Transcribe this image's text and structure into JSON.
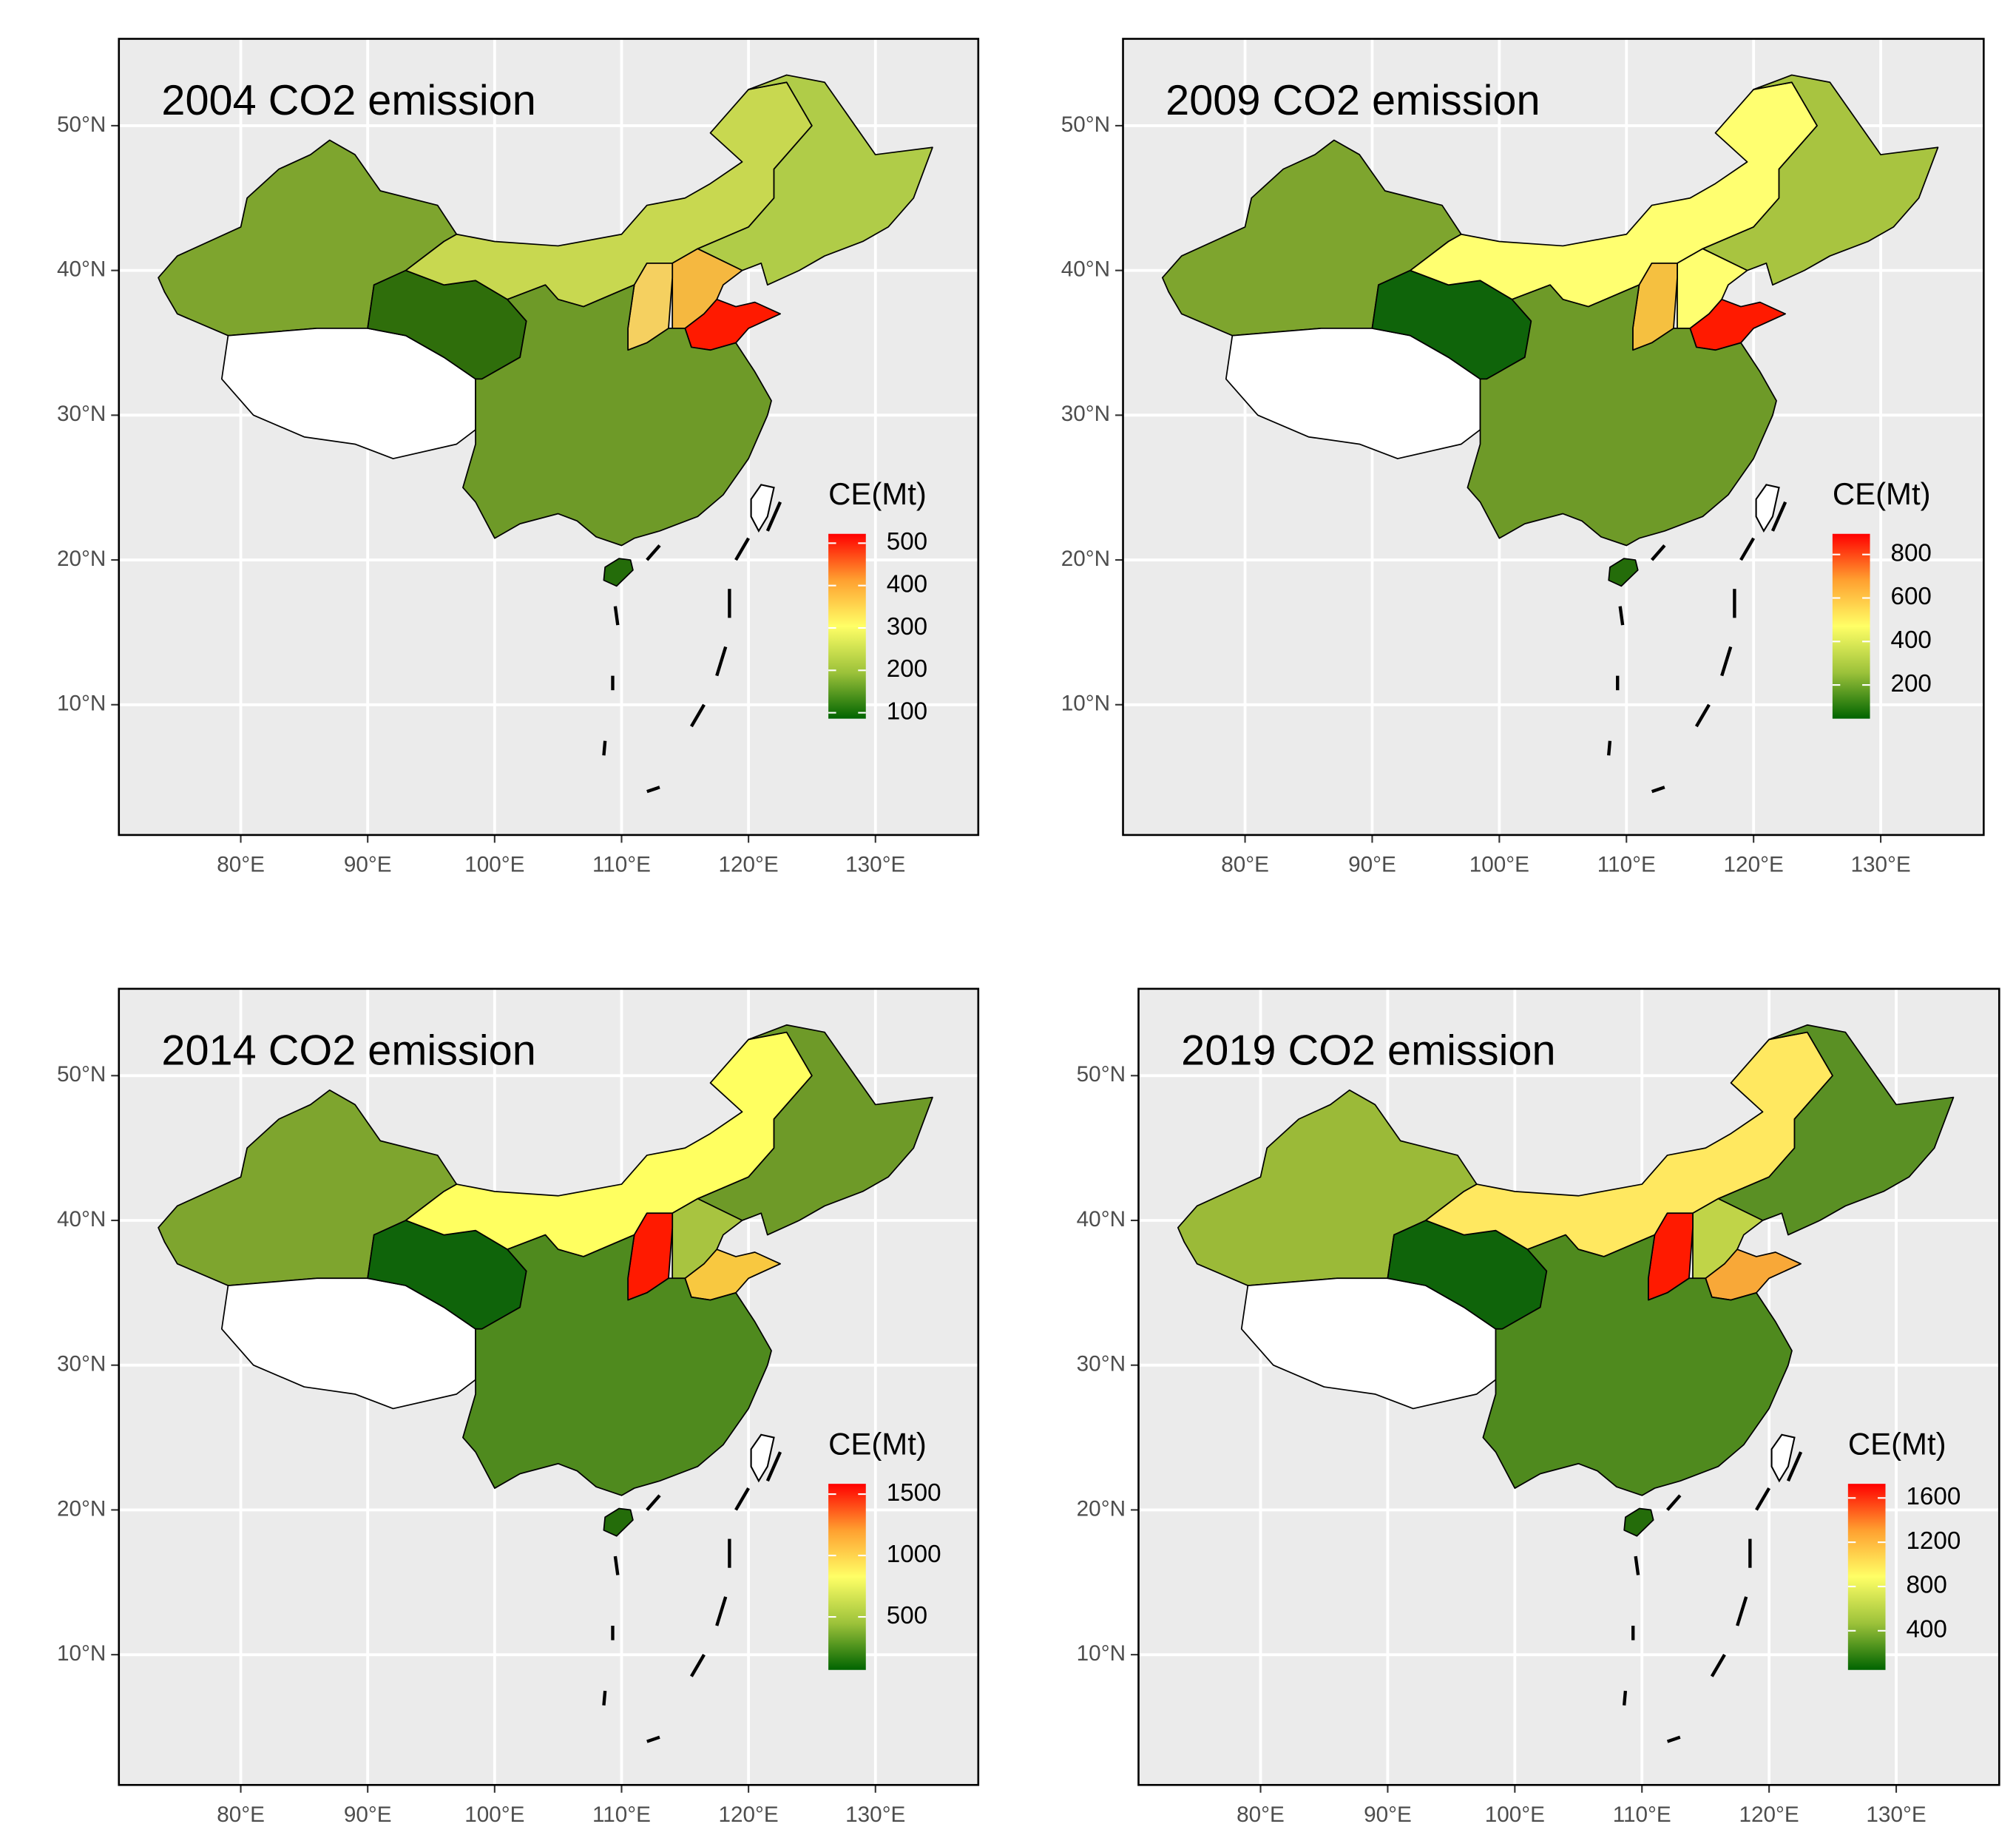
{
  "chart_data": [
    {
      "type": "map",
      "title": "2004 CO2 emission",
      "legend_title": "CE(Mt)",
      "xlim": [
        70.4,
        138.1
      ],
      "ylim": [
        1,
        56
      ],
      "xticks": [
        {
          "value": 80,
          "label": "80°E"
        },
        {
          "value": 90,
          "label": "90°E"
        },
        {
          "value": 100,
          "label": "100°E"
        },
        {
          "value": 110,
          "label": "110°E"
        },
        {
          "value": 120,
          "label": "120°E"
        },
        {
          "value": 130,
          "label": "130°E"
        }
      ],
      "yticks": [
        {
          "value": 10,
          "label": "10°N"
        },
        {
          "value": 20,
          "label": "20°N"
        },
        {
          "value": 30,
          "label": "30°N"
        },
        {
          "value": 40,
          "label": "40°N"
        },
        {
          "value": 50,
          "label": "50°N"
        }
      ],
      "legend_lim": [
        86,
        522
      ],
      "legend_ticks": [
        100,
        200,
        300,
        400,
        500
      ],
      "legend_colors": [
        "#006400",
        "#9cc23a",
        "#ffff66",
        "#ffa030",
        "#ff0000"
      ],
      "region_fills": [
        "#7ea52e",
        "#ffffff",
        "#2f6e0b",
        "#c8d850",
        "#b0cc48",
        "#f5b840",
        "#f5d060",
        "#ff1a00",
        "#6e9a28",
        "#246c0a"
      ]
    },
    {
      "type": "map",
      "title": "2009 CO2 emission",
      "legend_title": "CE(Mt)",
      "xlim": [
        70.4,
        138.1
      ],
      "ylim": [
        1,
        56
      ],
      "xticks": [
        {
          "value": 80,
          "label": "80°E"
        },
        {
          "value": 90,
          "label": "90°E"
        },
        {
          "value": 100,
          "label": "100°E"
        },
        {
          "value": 110,
          "label": "110°E"
        },
        {
          "value": 120,
          "label": "120°E"
        },
        {
          "value": 130,
          "label": "130°E"
        }
      ],
      "yticks": [
        {
          "value": 10,
          "label": "10°N"
        },
        {
          "value": 20,
          "label": "20°N"
        },
        {
          "value": 30,
          "label": "30°N"
        },
        {
          "value": 40,
          "label": "40°N"
        },
        {
          "value": 50,
          "label": "50°N"
        }
      ],
      "legend_lim": [
        45,
        895
      ],
      "legend_ticks": [
        200,
        400,
        600,
        800
      ],
      "legend_colors": [
        "#006400",
        "#9cc23a",
        "#ffff66",
        "#ffa030",
        "#ff0000"
      ],
      "region_fills": [
        "#7ea52e",
        "#ffffff",
        "#0f640a",
        "#ffff70",
        "#a8c440",
        "#ffff70",
        "#f5c040",
        "#ff1a00",
        "#6e9a28",
        "#246c0a"
      ]
    },
    {
      "type": "map",
      "title": "2014 CO2 emission",
      "legend_title": "CE(Mt)",
      "xlim": [
        70.4,
        138.1
      ],
      "ylim": [
        1,
        56
      ],
      "xticks": [
        {
          "value": 80,
          "label": "80°E"
        },
        {
          "value": 90,
          "label": "90°E"
        },
        {
          "value": 100,
          "label": "100°E"
        },
        {
          "value": 110,
          "label": "110°E"
        },
        {
          "value": 120,
          "label": "120°E"
        },
        {
          "value": 130,
          "label": "130°E"
        }
      ],
      "yticks": [
        {
          "value": 10,
          "label": "10°N"
        },
        {
          "value": 20,
          "label": "20°N"
        },
        {
          "value": 30,
          "label": "30°N"
        },
        {
          "value": 40,
          "label": "40°N"
        },
        {
          "value": 50,
          "label": "50°N"
        }
      ],
      "legend_lim": [
        68,
        1584
      ],
      "legend_ticks": [
        500,
        1000,
        1500
      ],
      "legend_colors": [
        "#006400",
        "#9cc23a",
        "#ffff66",
        "#ffa030",
        "#ff0000"
      ],
      "region_fills": [
        "#7ea52e",
        "#ffffff",
        "#0f640a",
        "#ffff60",
        "#6e9a28",
        "#a8c440",
        "#ff1a00",
        "#f8c840",
        "#4f8a1e",
        "#246c0a"
      ]
    },
    {
      "type": "map",
      "title": "2019 CO2 emission",
      "legend_title": "CE(Mt)",
      "xlim": [
        70.4,
        138.1
      ],
      "ylim": [
        1,
        56
      ],
      "xticks": [
        {
          "value": 80,
          "label": "80°E"
        },
        {
          "value": 90,
          "label": "90°E"
        },
        {
          "value": 100,
          "label": "100°E"
        },
        {
          "value": 110,
          "label": "110°E"
        },
        {
          "value": 120,
          "label": "120°E"
        },
        {
          "value": 130,
          "label": "130°E"
        }
      ],
      "yticks": [
        {
          "value": 10,
          "label": "10°N"
        },
        {
          "value": 20,
          "label": "20°N"
        },
        {
          "value": 30,
          "label": "30°N"
        },
        {
          "value": 40,
          "label": "40°N"
        },
        {
          "value": 50,
          "label": "50°N"
        }
      ],
      "legend_lim": [
        46,
        1728
      ],
      "legend_ticks": [
        400,
        800,
        1200,
        1600
      ],
      "legend_colors": [
        "#006400",
        "#9cc23a",
        "#ffff66",
        "#ffa030",
        "#ff0000"
      ],
      "region_fills": [
        "#9bba38",
        "#ffffff",
        "#0f640a",
        "#ffe860",
        "#5a9024",
        "#c0d448",
        "#ff1a00",
        "#f8a838",
        "#4f8a1e",
        "#246c0a"
      ]
    }
  ]
}
